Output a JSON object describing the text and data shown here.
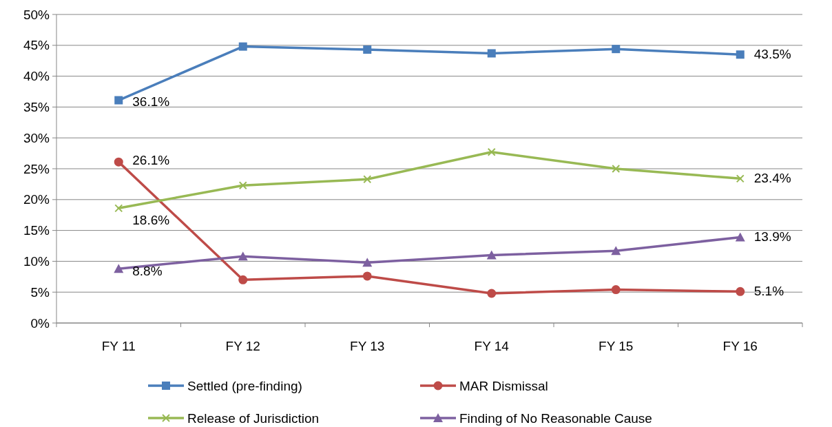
{
  "chart_data": {
    "type": "line",
    "categories": [
      "FY 11",
      "FY 12",
      "FY 13",
      "FY 14",
      "FY 15",
      "FY 16"
    ],
    "ylim": [
      0,
      50
    ],
    "yticks": [
      {
        "value": 0,
        "label": "0%"
      },
      {
        "value": 5,
        "label": "5%"
      },
      {
        "value": 10,
        "label": "10%"
      },
      {
        "value": 15,
        "label": "15%"
      },
      {
        "value": 20,
        "label": "20%"
      },
      {
        "value": 25,
        "label": "25%"
      },
      {
        "value": 30,
        "label": "30%"
      },
      {
        "value": 35,
        "label": "35%"
      },
      {
        "value": 40,
        "label": "40%"
      },
      {
        "value": 45,
        "label": "45%"
      },
      {
        "value": 50,
        "label": "50%"
      }
    ],
    "grid": "y",
    "legend": "bottom",
    "line_style": "solid",
    "series": [
      {
        "name": "Settled (pre-finding)",
        "color": "#4a7ebb",
        "marker": "square",
        "values": [
          36.1,
          44.8,
          44.3,
          43.7,
          44.4,
          43.5
        ],
        "value_labels": [
          "36.1%",
          null,
          null,
          null,
          null,
          "43.5%"
        ]
      },
      {
        "name": "MAR Dismissal",
        "color": "#be4b48",
        "marker": "circle",
        "values": [
          26.1,
          7.0,
          7.6,
          4.8,
          5.4,
          5.1
        ],
        "value_labels": [
          "26.1%",
          null,
          null,
          null,
          null,
          "5.1%"
        ]
      },
      {
        "name": "Release of Jurisdiction",
        "color": "#98b954",
        "marker": "cross",
        "values": [
          18.6,
          22.3,
          23.3,
          27.7,
          25.0,
          23.4
        ],
        "value_labels": [
          "18.6%",
          null,
          null,
          null,
          null,
          "23.4%"
        ]
      },
      {
        "name": "Finding of No Reasonable Cause",
        "color": "#7d60a0",
        "marker": "triangle",
        "values": [
          8.8,
          10.8,
          9.8,
          11.0,
          11.7,
          13.9
        ],
        "value_labels": [
          "8.8%",
          null,
          null,
          null,
          null,
          "13.9%"
        ]
      }
    ]
  }
}
